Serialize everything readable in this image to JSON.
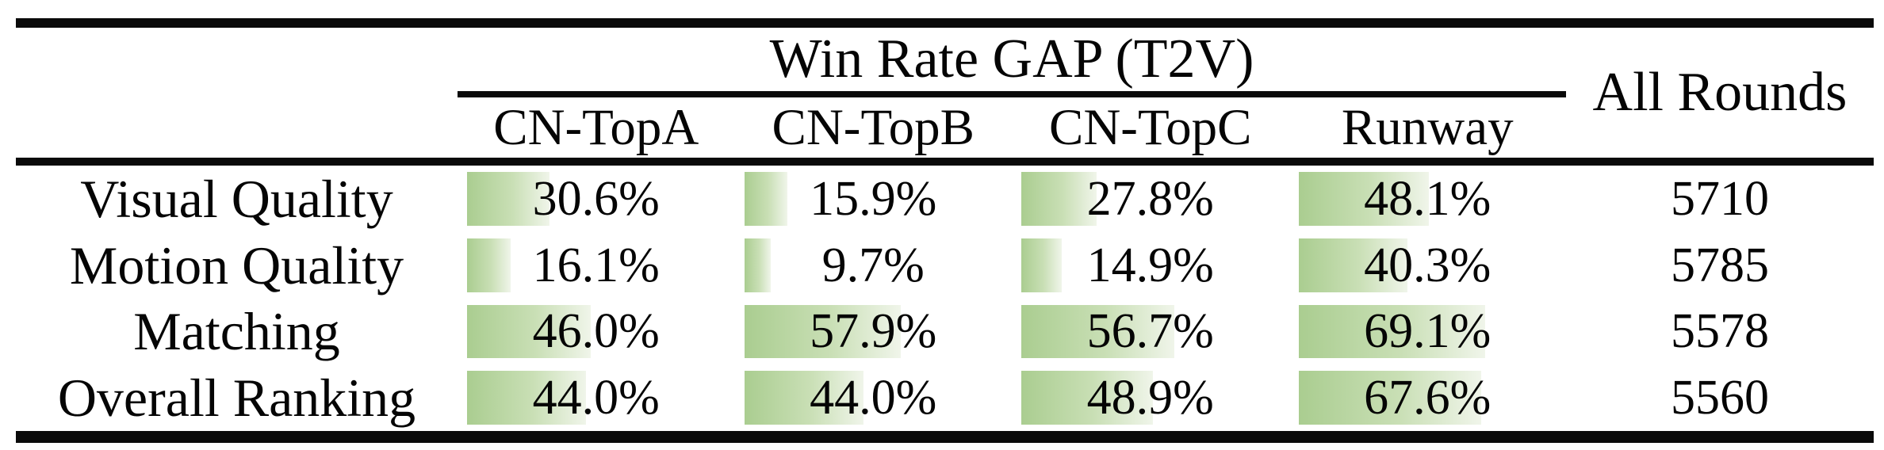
{
  "title": "Win Rate GAP (T2V)",
  "all_rounds_header": "All Rounds",
  "table": {
    "columns": [
      "CN-TopA",
      "CN-TopB",
      "CN-TopC",
      "Runway"
    ],
    "rows": [
      {
        "label": "Visual Quality",
        "win_rates": [
          "30.6%",
          "15.9%",
          "27.8%",
          "48.1%"
        ],
        "all_rounds": "5710"
      },
      {
        "label": "Motion Quality",
        "win_rates": [
          "16.1%",
          "9.7%",
          "14.9%",
          "40.3%"
        ],
        "all_rounds": "5785"
      },
      {
        "label": "Matching",
        "win_rates": [
          "46.0%",
          "57.9%",
          "56.7%",
          "69.1%"
        ],
        "all_rounds": "5578"
      },
      {
        "label": "Overall Ranking",
        "win_rates": [
          "44.0%",
          "44.0%",
          "48.9%",
          "67.6%"
        ],
        "all_rounds": "5560"
      }
    ]
  },
  "chart_data": {
    "type": "table",
    "title": "Win Rate GAP (T2V)",
    "categories": [
      "Visual Quality",
      "Motion Quality",
      "Matching",
      "Overall Ranking"
    ],
    "series": [
      {
        "name": "CN-TopA",
        "values": [
          30.6,
          16.1,
          46.0,
          44.0
        ]
      },
      {
        "name": "CN-TopB",
        "values": [
          15.9,
          9.7,
          57.9,
          44.0
        ]
      },
      {
        "name": "CN-TopC",
        "values": [
          27.8,
          14.9,
          56.7,
          48.9
        ]
      },
      {
        "name": "Runway",
        "values": [
          48.1,
          40.3,
          69.1,
          67.6
        ]
      }
    ],
    "extra_column": {
      "name": "All Rounds",
      "values": [
        5710,
        5785,
        5578,
        5560
      ]
    },
    "bar_scale_note": "in-cell bars proportional to percentage, 100% = full cell width"
  },
  "colors": {
    "bar_start": "#aacd90",
    "bar_mid": "#c9dfb5",
    "bar_end": "#f0f5ea",
    "rule_black": "#0a0a0a"
  }
}
